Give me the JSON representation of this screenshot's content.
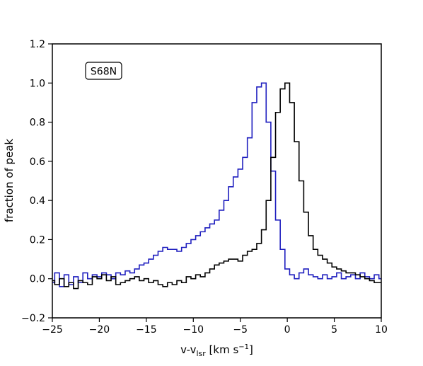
{
  "chart_data": {
    "type": "line",
    "title": "",
    "annotation": "S68N",
    "xlabel": "v-v",
    "xlabel_subscript": "lsr",
    "xlabel_unit_prefix": " [km s",
    "xlabel_unit_exponent": "−1",
    "xlabel_unit_suffix": "]",
    "ylabel": "fraction of peak",
    "xlim": [
      -25,
      10
    ],
    "ylim": [
      -0.2,
      1.2
    ],
    "xticks": [
      -25,
      -20,
      -15,
      -10,
      -5,
      0,
      5,
      10
    ],
    "xtick_labels": [
      "−25",
      "−20",
      "−15",
      "−10",
      "−5",
      "0",
      "5",
      "10"
    ],
    "yticks": [
      -0.2,
      0.0,
      0.2,
      0.4,
      0.6,
      0.8,
      1.0,
      1.2
    ],
    "ytick_labels": [
      "−0.2",
      "0.0",
      "0.2",
      "0.4",
      "0.6",
      "0.8",
      "1.0",
      "1.2"
    ],
    "grid": false,
    "series": [
      {
        "color": "#1f1fbf",
        "step": true,
        "x": [
          -25.0,
          -24.5,
          -24.0,
          -23.5,
          -23.0,
          -22.5,
          -22.0,
          -21.5,
          -21.0,
          -20.5,
          -20.0,
          -19.5,
          -19.0,
          -18.5,
          -18.0,
          -17.5,
          -17.0,
          -16.5,
          -16.0,
          -15.5,
          -15.0,
          -14.5,
          -14.0,
          -13.5,
          -13.0,
          -12.5,
          -12.0,
          -11.5,
          -11.0,
          -10.5,
          -10.0,
          -9.5,
          -9.0,
          -8.5,
          -8.0,
          -7.5,
          -7.0,
          -6.5,
          -6.0,
          -5.5,
          -5.0,
          -4.5,
          -4.0,
          -3.5,
          -3.0,
          -2.5,
          -2.0,
          -1.5,
          -1.0,
          -0.5,
          0.0,
          0.5,
          1.0,
          1.5,
          2.0,
          2.5,
          3.0,
          3.5,
          4.0,
          4.5,
          5.0,
          5.5,
          6.0,
          6.5,
          7.0,
          7.5,
          8.0,
          8.5,
          9.0,
          9.5,
          10.0
        ],
        "values": [
          -0.02,
          0.03,
          -0.04,
          0.02,
          -0.03,
          0.01,
          -0.02,
          0.03,
          0.0,
          0.02,
          0.01,
          0.03,
          0.02,
          0.0,
          0.03,
          0.02,
          0.04,
          0.03,
          0.05,
          0.07,
          0.08,
          0.1,
          0.12,
          0.14,
          0.16,
          0.15,
          0.15,
          0.14,
          0.16,
          0.18,
          0.2,
          0.22,
          0.24,
          0.26,
          0.28,
          0.3,
          0.35,
          0.4,
          0.47,
          0.52,
          0.56,
          0.62,
          0.72,
          0.9,
          0.98,
          1.0,
          0.8,
          0.55,
          0.3,
          0.15,
          0.05,
          0.02,
          0.0,
          0.03,
          0.05,
          0.02,
          0.01,
          0.0,
          0.02,
          0.0,
          0.01,
          0.03,
          0.0,
          0.01,
          0.02,
          0.0,
          0.03,
          0.01,
          0.0,
          0.02,
          0.0
        ]
      },
      {
        "color": "#000000",
        "step": true,
        "x": [
          -25.0,
          -24.5,
          -24.0,
          -23.5,
          -23.0,
          -22.5,
          -22.0,
          -21.5,
          -21.0,
          -20.5,
          -20.0,
          -19.5,
          -19.0,
          -18.5,
          -18.0,
          -17.5,
          -17.0,
          -16.5,
          -16.0,
          -15.5,
          -15.0,
          -14.5,
          -14.0,
          -13.5,
          -13.0,
          -12.5,
          -12.0,
          -11.5,
          -11.0,
          -10.5,
          -10.0,
          -9.5,
          -9.0,
          -8.5,
          -8.0,
          -7.5,
          -7.0,
          -6.5,
          -6.0,
          -5.5,
          -5.0,
          -4.5,
          -4.0,
          -3.5,
          -3.0,
          -2.5,
          -2.0,
          -1.5,
          -1.0,
          -0.5,
          0.0,
          0.5,
          1.0,
          1.5,
          2.0,
          2.5,
          3.0,
          3.5,
          4.0,
          4.5,
          5.0,
          5.5,
          6.0,
          6.5,
          7.0,
          7.5,
          8.0,
          8.5,
          9.0,
          9.5,
          10.0
        ],
        "values": [
          -0.01,
          -0.03,
          0.0,
          -0.04,
          -0.02,
          -0.05,
          -0.01,
          -0.02,
          -0.03,
          0.01,
          0.0,
          0.02,
          -0.01,
          0.01,
          -0.03,
          -0.02,
          -0.01,
          0.0,
          0.01,
          -0.01,
          0.0,
          -0.02,
          -0.01,
          -0.03,
          -0.04,
          -0.02,
          -0.03,
          -0.01,
          -0.02,
          0.01,
          0.0,
          0.02,
          0.01,
          0.03,
          0.05,
          0.07,
          0.08,
          0.09,
          0.1,
          0.1,
          0.09,
          0.12,
          0.14,
          0.15,
          0.18,
          0.25,
          0.4,
          0.62,
          0.85,
          0.97,
          1.0,
          0.9,
          0.7,
          0.5,
          0.34,
          0.22,
          0.15,
          0.12,
          0.1,
          0.08,
          0.06,
          0.05,
          0.04,
          0.03,
          0.03,
          0.02,
          0.01,
          0.0,
          -0.01,
          -0.02,
          -0.02
        ]
      }
    ]
  }
}
